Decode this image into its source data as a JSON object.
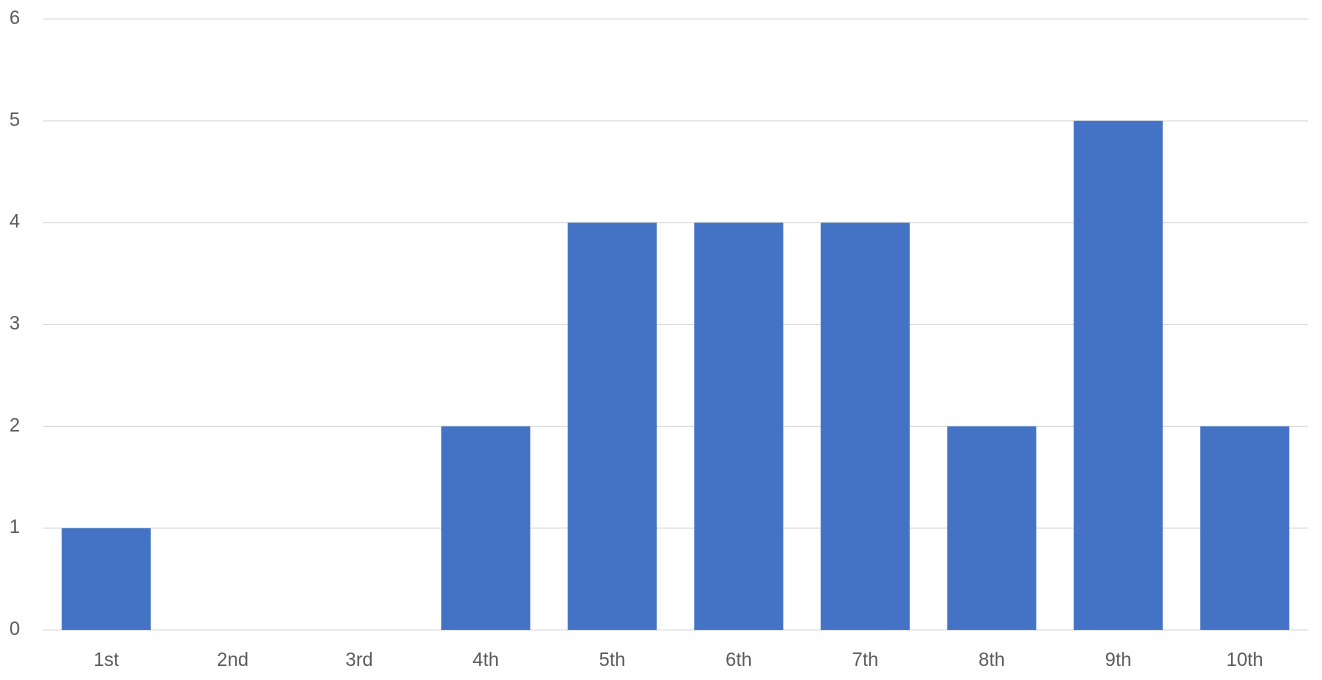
{
  "chart_data": {
    "type": "bar",
    "categories": [
      "1st",
      "2nd",
      "3rd",
      "4th",
      "5th",
      "6th",
      "7th",
      "8th",
      "9th",
      "10th"
    ],
    "values": [
      1,
      0,
      0,
      2,
      4,
      4,
      4,
      2,
      5,
      2
    ],
    "color": "#4472c4",
    "ylim": [
      0,
      6
    ],
    "yticks": [
      0,
      1,
      2,
      3,
      4,
      5,
      6
    ],
    "grid": true
  }
}
